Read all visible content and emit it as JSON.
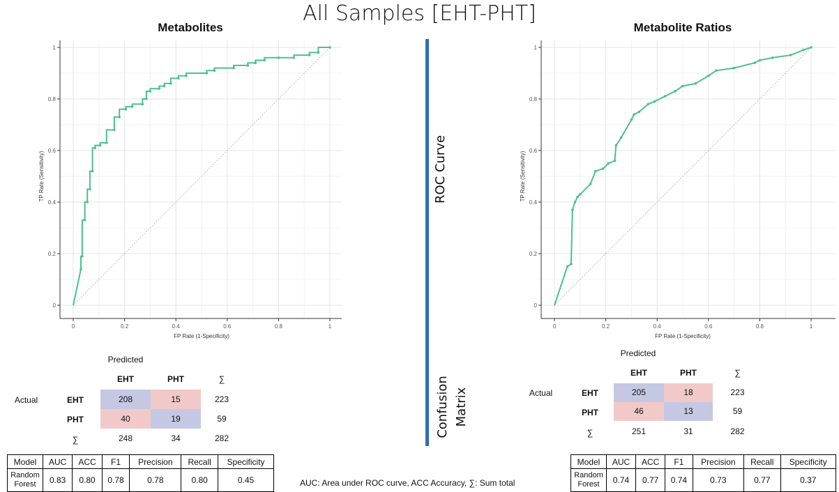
{
  "title": "All Samples [EHT-PHT]",
  "section_labels": {
    "roc": "ROC Curve",
    "cm_line1": "Confusion",
    "cm_line2": "Matrix"
  },
  "colors": {
    "curve": "#4dbf91",
    "divider": "#2e6db4",
    "true_cell": "#c5c8e2",
    "false_cell": "#f2c9c9"
  },
  "chart_data": [
    {
      "type": "line",
      "title": "Metabolites",
      "xlabel": "FP Rate (1-Specificity)",
      "ylabel": "TP Rate (Sensitivity)",
      "xlim": [
        0,
        1
      ],
      "ylim": [
        0,
        1
      ],
      "x_ticks": [
        "0",
        "0.2",
        "0.4",
        "0.6",
        "0.8",
        "1"
      ],
      "y_ticks": [
        "0",
        "0.2",
        "0.4",
        "0.6",
        "0.8",
        "1"
      ],
      "grid": true,
      "series": [
        {
          "x": [
            0,
            0.03,
            0.03,
            0.035,
            0.035,
            0.045,
            0.045,
            0.055,
            0.055,
            0.065,
            0.065,
            0.075,
            0.075,
            0.085,
            0.085,
            0.105,
            0.105,
            0.13,
            0.13,
            0.16,
            0.16,
            0.18,
            0.18,
            0.205,
            0.205,
            0.23,
            0.23,
            0.27,
            0.27,
            0.285,
            0.285,
            0.3,
            0.3,
            0.335,
            0.335,
            0.355,
            0.355,
            0.38,
            0.38,
            0.41,
            0.41,
            0.44,
            0.44,
            0.52,
            0.52,
            0.55,
            0.55,
            0.625,
            0.625,
            0.68,
            0.68,
            0.71,
            0.71,
            0.745,
            0.745,
            0.8,
            0.8,
            0.86,
            0.86,
            0.92,
            0.92,
            0.955,
            0.955,
            1.0
          ],
          "y": [
            0,
            0.14,
            0.19,
            0.19,
            0.33,
            0.33,
            0.4,
            0.4,
            0.45,
            0.45,
            0.52,
            0.52,
            0.61,
            0.61,
            0.62,
            0.62,
            0.63,
            0.63,
            0.68,
            0.68,
            0.73,
            0.73,
            0.76,
            0.76,
            0.77,
            0.77,
            0.78,
            0.78,
            0.8,
            0.8,
            0.83,
            0.83,
            0.84,
            0.84,
            0.85,
            0.85,
            0.86,
            0.86,
            0.88,
            0.88,
            0.89,
            0.89,
            0.9,
            0.9,
            0.91,
            0.91,
            0.92,
            0.92,
            0.93,
            0.93,
            0.94,
            0.94,
            0.95,
            0.95,
            0.96,
            0.96,
            0.96,
            0.96,
            0.97,
            0.97,
            0.98,
            0.98,
            1.0,
            1.0
          ]
        }
      ]
    },
    {
      "type": "line",
      "title": "Metabolite Ratios",
      "xlabel": "FP Rate (1-Specificity)",
      "ylabel": "TP Rate (Sensitivity)",
      "xlim": [
        0,
        1
      ],
      "ylim": [
        0,
        1
      ],
      "x_ticks": [
        "0",
        "0.2",
        "0.4",
        "0.6",
        "0.8",
        "1"
      ],
      "y_ticks": [
        "0",
        "0.2",
        "0.4",
        "0.6",
        "0.8",
        "1"
      ],
      "grid": true,
      "series": [
        {
          "x": [
            0,
            0.05,
            0.05,
            0.065,
            0.065,
            0.07,
            0.07,
            0.08,
            0.08,
            0.09,
            0.09,
            0.1,
            0.1,
            0.14,
            0.14,
            0.16,
            0.16,
            0.19,
            0.19,
            0.21,
            0.21,
            0.235,
            0.235,
            0.24,
            0.24,
            0.26,
            0.26,
            0.3,
            0.3,
            0.31,
            0.31,
            0.33,
            0.33,
            0.365,
            0.365,
            0.39,
            0.39,
            0.43,
            0.43,
            0.47,
            0.47,
            0.5,
            0.5,
            0.55,
            0.55,
            0.6,
            0.6,
            0.63,
            0.63,
            0.7,
            0.7,
            0.78,
            0.78,
            0.8,
            0.8,
            0.85,
            0.85,
            0.92,
            0.92,
            0.97,
            0.97,
            1.0
          ],
          "y": [
            0,
            0.15,
            0.15,
            0.16,
            0.16,
            0.37,
            0.37,
            0.4,
            0.4,
            0.42,
            0.42,
            0.43,
            0.43,
            0.47,
            0.47,
            0.52,
            0.52,
            0.53,
            0.53,
            0.55,
            0.55,
            0.56,
            0.56,
            0.62,
            0.62,
            0.65,
            0.65,
            0.72,
            0.72,
            0.74,
            0.74,
            0.75,
            0.75,
            0.78,
            0.78,
            0.79,
            0.79,
            0.81,
            0.81,
            0.83,
            0.83,
            0.85,
            0.85,
            0.86,
            0.86,
            0.89,
            0.89,
            0.91,
            0.91,
            0.92,
            0.92,
            0.94,
            0.94,
            0.95,
            0.95,
            0.96,
            0.96,
            0.97,
            0.97,
            0.99,
            0.99,
            1.0
          ]
        }
      ]
    }
  ],
  "left_panel": {
    "confusion": {
      "predicted_label": "Predicted",
      "actual_label": "Actual",
      "col_headers": [
        "EHT",
        "PHT",
        "∑"
      ],
      "rows": [
        {
          "label": "EHT",
          "values": [
            "208",
            "15",
            "223"
          ]
        },
        {
          "label": "PHT",
          "values": [
            "40",
            "19",
            "59"
          ]
        },
        {
          "label": "∑",
          "values": [
            "248",
            "34",
            "282"
          ]
        }
      ]
    },
    "metrics": {
      "headers": [
        "Model",
        "AUC",
        "ACC",
        "F1",
        "Precision",
        "Recall",
        "Specificity"
      ],
      "model": "Random Forest",
      "values": [
        "0.83",
        "0.80",
        "0.78",
        "0.78",
        "0.80",
        "0.45"
      ]
    }
  },
  "right_panel": {
    "confusion": {
      "predicted_label": "Predicted",
      "actual_label": "Actual",
      "col_headers": [
        "EHT",
        "PHT",
        "∑"
      ],
      "rows": [
        {
          "label": "EHT",
          "values": [
            "205",
            "18",
            "223"
          ]
        },
        {
          "label": "PHT",
          "values": [
            "46",
            "13",
            "59"
          ]
        },
        {
          "label": "∑",
          "values": [
            "251",
            "31",
            "282"
          ]
        }
      ]
    },
    "metrics": {
      "headers": [
        "Model",
        "AUC",
        "ACC",
        "F1",
        "Precision",
        "Recall",
        "Specificity"
      ],
      "model": "Random Forest",
      "values": [
        "0.74",
        "0.77",
        "0.74",
        "0.73",
        "0.77",
        "0.37"
      ]
    }
  },
  "footnote": "AUC: Area under ROC curve, ACC Accuracy, ∑: Sum total"
}
